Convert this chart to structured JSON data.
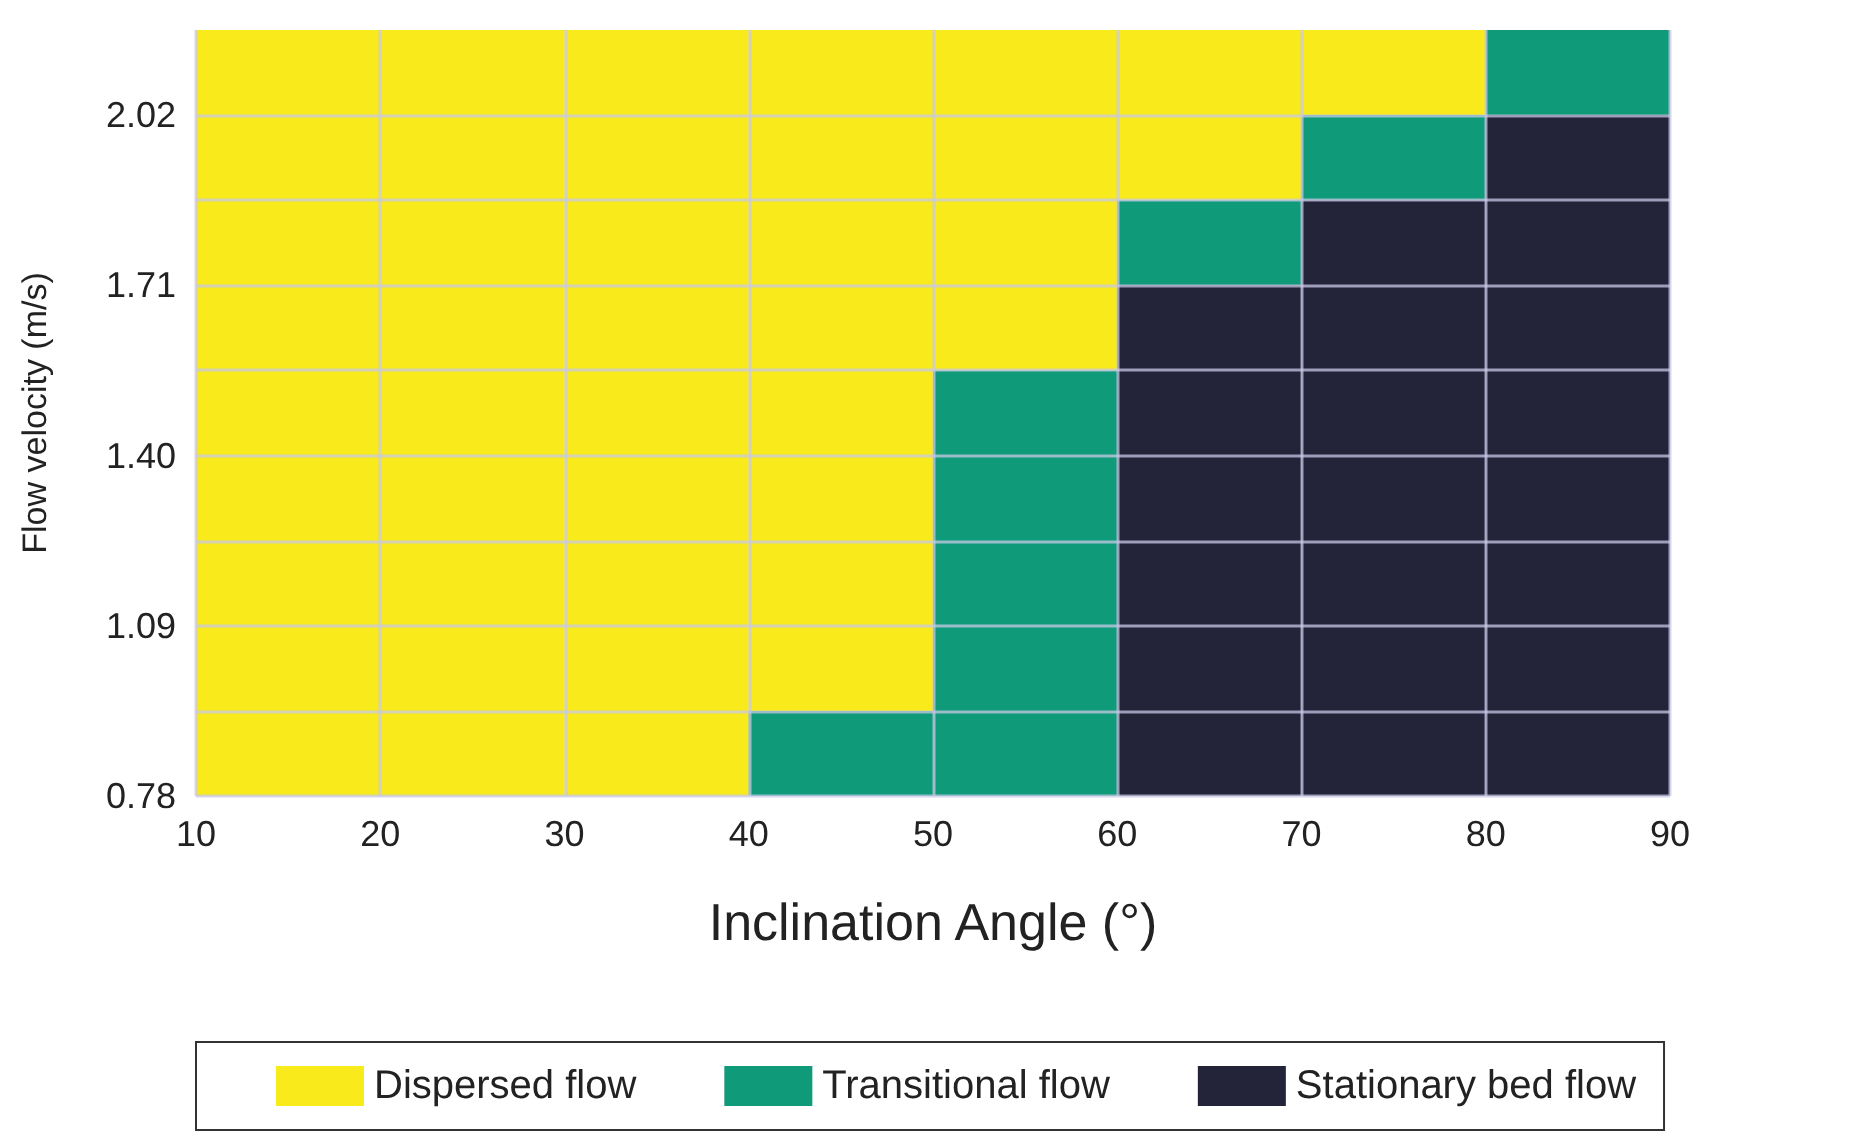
{
  "chart_data": {
    "type": "bar",
    "xlabel": "Inclination Angle (°)",
    "ylabel": "Flow velocity (m/s)",
    "x": [
      15,
      25,
      35,
      45,
      55,
      65,
      75,
      85
    ],
    "xlim": [
      10,
      90
    ],
    "xticks": [
      10,
      20,
      30,
      40,
      50,
      60,
      70,
      80,
      90
    ],
    "ylim": [
      0.78,
      2.175
    ],
    "yticks": [
      0.78,
      {
        "value": 0.935,
        "label": null
      },
      1.09,
      {
        "value": 1.245,
        "label": null
      },
      {
        "value": 1.4,
        "label": "1.40"
      },
      {
        "value": 1.555,
        "label": null
      },
      1.71,
      {
        "value": 1.865,
        "label": null
      },
      2.02
    ],
    "grid": true,
    "legend": "bottom",
    "series": [
      {
        "name": "Dispersed flow",
        "color": "#f9ea1c",
        "base": [
          0.78,
          0.78,
          0.78,
          0.935,
          1.555,
          1.865,
          2.02,
          null
        ],
        "values": [
          1.395,
          1.395,
          1.395,
          1.24,
          0.62,
          0.31,
          0.155,
          null
        ]
      },
      {
        "name": "Transitional flow",
        "color": "#0f9b7a",
        "base": [
          null,
          null,
          null,
          0.78,
          0.78,
          1.71,
          1.865,
          2.02
        ],
        "values": [
          null,
          null,
          null,
          0.155,
          0.775,
          0.155,
          0.155,
          0.155
        ]
      },
      {
        "name": "Stationary bed flow",
        "color": "#23233a",
        "base": [
          null,
          null,
          null,
          null,
          null,
          0.78,
          0.78,
          0.78
        ],
        "values": [
          null,
          null,
          null,
          null,
          null,
          0.93,
          1.085,
          1.24
        ]
      }
    ]
  }
}
